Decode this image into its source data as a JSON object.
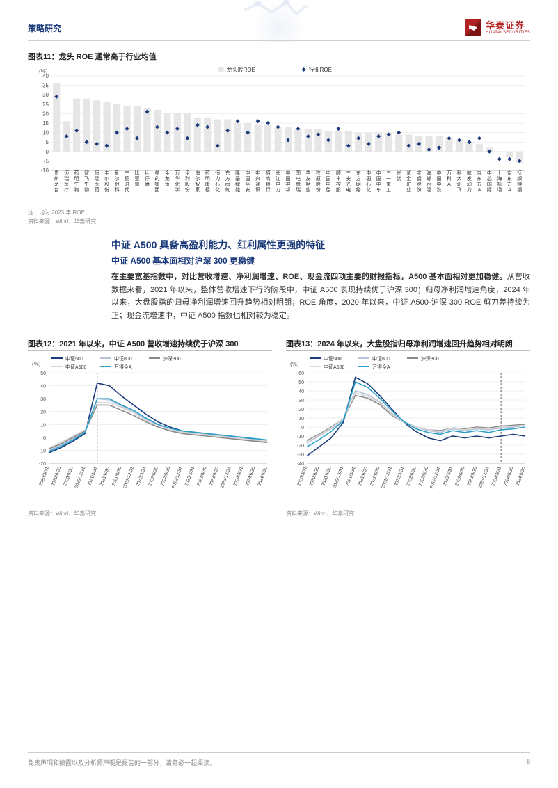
{
  "header": {
    "section_label": "策略研究",
    "brand_cn": "华泰证券",
    "brand_en": "HUATAI SECURITIES"
  },
  "footer": {
    "disclaimer": "免责声明和披露以及分析师声明是报告的一部分，请务必一起阅读。",
    "page_number": "8"
  },
  "colors": {
    "brand_red": "#b22222",
    "brand_navy": "#1a3a7a",
    "grid": "#e0e0e0",
    "axis": "#888888"
  },
  "chart11": {
    "title": "图表11：龙头 ROE 通常高于行业均值",
    "type": "bar+scatter",
    "ylabel": "(%)",
    "ylim": [
      -10,
      40
    ],
    "ytick_step": 5,
    "legend": [
      {
        "label": "龙头股ROE",
        "kind": "bar",
        "color": "#e6e6e6"
      },
      {
        "label": "行业ROE",
        "kind": "marker",
        "color": "#1a3a7a"
      }
    ],
    "categories": [
      "贵州茅台",
      "迈瑞医疗",
      "药明生物",
      "智飞生物",
      "恒瑞医药",
      "韦尔股份",
      "爱尔眼科",
      "宁德时代",
      "比亚迪",
      "片仔癀",
      "美的集团",
      "金龙鱼",
      "万华化学",
      "伊利股份",
      "海尔智家",
      "药明康德",
      "恒力石化",
      "东方雨虹",
      "隆基绿能",
      "中国平安",
      "中兴通讯",
      "招商银行",
      "长江电力",
      "中国神华",
      "国电南瑞",
      "华友钴业",
      "牧原股份",
      "中国中免",
      "顺丰控股",
      "三安光电",
      "东方网络",
      "中国石化",
      "中国中车",
      "三一重工",
      "光伏",
      "紫金矿业",
      "宝钢股份",
      "海螺水泥",
      "中国中铁",
      "万科A",
      "科大讯飞",
      "航发动力",
      "京东方A",
      "中芯国际",
      "上海机场",
      "京东方A",
      "抚顺特钢"
    ],
    "bars": [
      36,
      16,
      28,
      28,
      27,
      26,
      25,
      24,
      24,
      23,
      22,
      20,
      20,
      20,
      18,
      18,
      17,
      17,
      15,
      15,
      14,
      14,
      13,
      13,
      12,
      12,
      12,
      11,
      11,
      11,
      10,
      10,
      10,
      10,
      9,
      9,
      8,
      8,
      8,
      7,
      6,
      5,
      4,
      2,
      0,
      -3,
      -6
    ],
    "markers": [
      29,
      8,
      11,
      5,
      4,
      3,
      10,
      12,
      7,
      21,
      13,
      10,
      12,
      7,
      14,
      13,
      3,
      11,
      16,
      10,
      16,
      15,
      13,
      6,
      12,
      8,
      9,
      6,
      12,
      3,
      7,
      4,
      8,
      9,
      10,
      3,
      4,
      1,
      2,
      7,
      6,
      5,
      7,
      0,
      -4,
      -4,
      -5
    ],
    "bar_color": "#e6e6e6",
    "marker_color": "#1a3a7a",
    "label_fontsize": 7,
    "note_line1": "注：均为 2023 年 ROE",
    "note_line2": "资料来源：Wind，华泰研究"
  },
  "section": {
    "title": "中证 A500 具备高盈利能力、红利属性更强的特征",
    "subtitle": "中证 A500 基本面相对沪深 300 更稳健",
    "paragraph_bold": "在主要宽基指数中，对比营收增速、净利润增速、ROE、现金流四项主要的财报指标，A500 基本面相对更加稳健。",
    "paragraph_rest": "从营收数据来看，2021 年以来，整体营收增速下行的阶段中，中证 A500 表现持续优于沪深 300；归母净利润增速角度，2024 年以来，大盘股指的归母净利润增速回升趋势相对明朗；ROE 角度，2020 年以来，中证 A500-沪深 300 ROE 剪刀差持续为正；现金流增速中，中证 A500 指数也相对较为稳定。"
  },
  "chart12": {
    "title": "图表12：2021 年以来，中证 A500 营收增速持续优于沪深 300",
    "type": "line",
    "ylabel": "(%)",
    "ylim": [
      -20,
      50
    ],
    "ytick_step": 10,
    "x_labels": [
      "2020/3/31",
      "2020/6/30",
      "2020/9/30",
      "2020/12/31",
      "2021/3/31",
      "2021/6/30",
      "2021/9/30",
      "2021/12/31",
      "2022/3/31",
      "2022/6/30",
      "2022/9/30",
      "2022/12/31",
      "2023/3/31",
      "2023/6/30",
      "2023/9/30",
      "2023/12/31",
      "2024/3/31",
      "2024/6/30",
      "2024/9/30"
    ],
    "vline_index": 4,
    "series": [
      {
        "label": "中证500",
        "color": "#1a3a7a",
        "values": [
          -12,
          -8,
          -3,
          3,
          42,
          40,
          32,
          25,
          18,
          12,
          8,
          5,
          4,
          3,
          2,
          1,
          0,
          -2,
          -3
        ]
      },
      {
        "label": "中证800",
        "color": "#b8c3da",
        "values": [
          -10,
          -6,
          -1,
          5,
          30,
          29,
          24,
          20,
          14,
          9,
          6,
          4,
          3,
          2,
          1,
          0,
          -1,
          -3,
          -4
        ]
      },
      {
        "label": "沪深300",
        "color": "#8a8a8a",
        "values": [
          -9,
          -5,
          0,
          5,
          25,
          25,
          21,
          17,
          12,
          8,
          5,
          3,
          2,
          1,
          0,
          -1,
          -2,
          -3,
          -4
        ]
      },
      {
        "label": "中证A500",
        "color": "#d8d8d8",
        "values": [
          -8,
          -4,
          1,
          6,
          27,
          27,
          23,
          19,
          13,
          9,
          6,
          4,
          3,
          2,
          1,
          0,
          -1,
          -2,
          -3
        ]
      },
      {
        "label": "万得全A",
        "color": "#2aa0c8",
        "values": [
          -11,
          -7,
          -2,
          4,
          30,
          30,
          25,
          21,
          15,
          10,
          7,
          5,
          4,
          3,
          2,
          1,
          0,
          -1,
          -2
        ]
      }
    ],
    "note": "资料来源：Wind，华泰研究"
  },
  "chart13": {
    "title": "图表13：2024 年以来，大盘股指归母净利润增速回升趋势相对明朗",
    "type": "line",
    "ylabel": "(%)",
    "ylim": [
      -40,
      60
    ],
    "ytick_step": 10,
    "x_labels": [
      "2020/3/31",
      "2020/6/30",
      "2020/9/30",
      "2020/12/31",
      "2021/3/31",
      "2021/6/30",
      "2021/9/30",
      "2021/12/31",
      "2022/3/31",
      "2022/6/30",
      "2022/9/30",
      "2022/12/31",
      "2023/3/31",
      "2023/6/30",
      "2023/9/30",
      "2023/12/31",
      "2024/3/31",
      "2024/6/30",
      "2024/9/30"
    ],
    "vline_index": 16,
    "series": [
      {
        "label": "中证500",
        "color": "#1a3a7a",
        "values": [
          -32,
          -22,
          -12,
          5,
          55,
          48,
          35,
          20,
          5,
          -5,
          -12,
          -15,
          -10,
          -12,
          -10,
          -12,
          -10,
          -8,
          -10
        ]
      },
      {
        "label": "中证800",
        "color": "#b8c3da",
        "values": [
          -18,
          -10,
          -2,
          8,
          40,
          36,
          28,
          15,
          6,
          0,
          -4,
          -6,
          -2,
          -4,
          -2,
          -3,
          -1,
          0,
          2
        ]
      },
      {
        "label": "沪深300",
        "color": "#8a8a8a",
        "values": [
          -15,
          -8,
          0,
          9,
          35,
          32,
          25,
          13,
          5,
          0,
          -3,
          -4,
          -1,
          -2,
          0,
          -1,
          1,
          2,
          3
        ]
      },
      {
        "label": "中证A500",
        "color": "#d8d8d8",
        "values": [
          -16,
          -9,
          -1,
          9,
          38,
          34,
          27,
          14,
          5,
          0,
          -3,
          -5,
          -1,
          -3,
          -1,
          -2,
          0,
          1,
          2
        ]
      },
      {
        "label": "万得全A",
        "color": "#2aa0c8",
        "values": [
          -22,
          -14,
          -5,
          7,
          50,
          44,
          32,
          18,
          6,
          -2,
          -6,
          -8,
          -4,
          -6,
          -4,
          -6,
          -3,
          -2,
          0
        ]
      }
    ],
    "note": "资料来源：Wind，华泰研究"
  }
}
